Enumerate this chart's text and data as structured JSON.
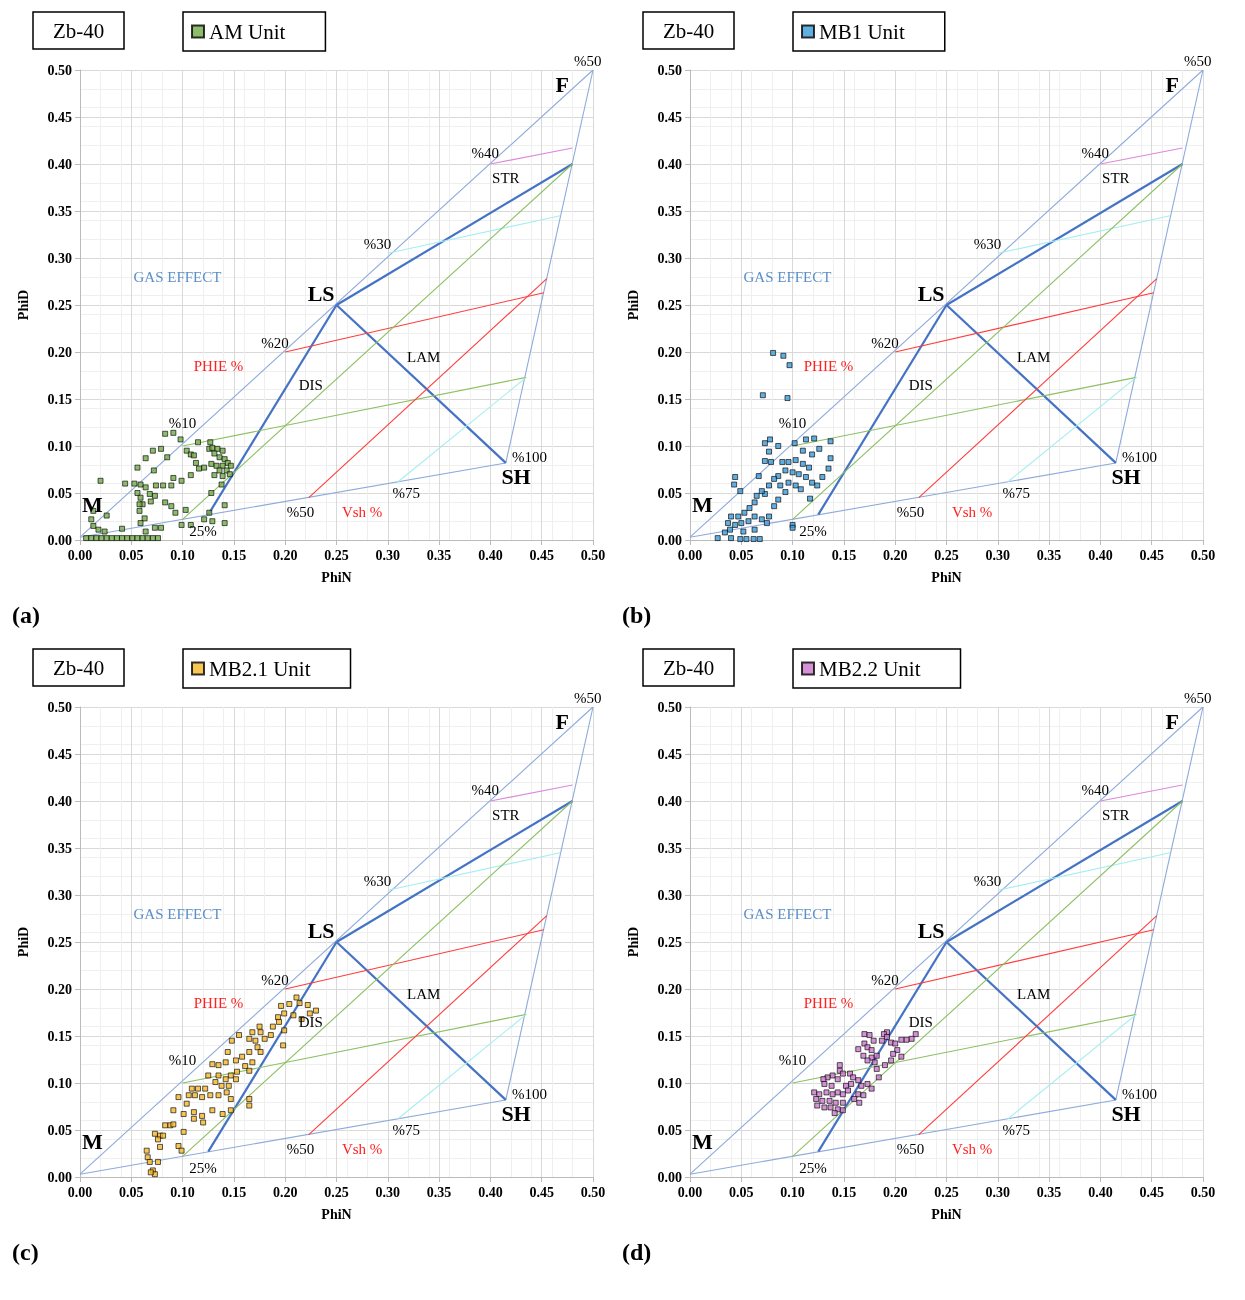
{
  "chart_data": [
    {
      "type": "scatter",
      "title": "Zb-40",
      "xlabel": "PhiN",
      "ylabel": "PhiD",
      "legend": "top left",
      "grid": true,
      "line_style": "solid",
      "xlim": [
        0,
        0.5
      ],
      "ylim": [
        0,
        0.5
      ],
      "xticks": [
        {
          "value": 0,
          "label": "0.00"
        },
        0.05,
        {
          "value": 0.1,
          "label": "0.10"
        },
        0.15,
        {
          "value": 0.2,
          "label": "0.20"
        },
        0.25,
        {
          "value": 0.3,
          "label": "0.30"
        },
        0.35,
        {
          "value": 0.4,
          "label": "0.40"
        },
        0.45,
        {
          "value": 0.5,
          "label": "0.50"
        }
      ],
      "yticks": [
        {
          "value": 0,
          "label": "0.00"
        },
        0.05,
        {
          "value": 0.1,
          "label": "0.10"
        },
        0.15,
        {
          "value": 0.2,
          "label": "0.20"
        },
        0.25,
        {
          "value": 0.3,
          "label": "0.30"
        },
        0.35,
        {
          "value": 0.4,
          "label": "0.40"
        },
        0.45,
        {
          "value": 0.5,
          "label": "0.50"
        }
      ],
      "series": [
        {
          "type": "line",
          "marker": "none",
          "color": "#8eaadb",
          "x": [
            0,
            0.5
          ],
          "values": [
            0.003,
            0.5
          ]
        },
        {
          "type": "line",
          "marker": "none",
          "color": "#8eaadb",
          "x": [
            0.5,
            0.415
          ],
          "values": [
            0.5,
            0.082
          ]
        },
        {
          "type": "line",
          "marker": "none",
          "color": "#8eaadb",
          "x": [
            0.415,
            0
          ],
          "values": [
            0.082,
            0.003
          ]
        },
        {
          "type": "line",
          "marker": "none",
          "color": "#4472c4",
          "x": [
            0.25,
            0.415
          ],
          "values": [
            0.25,
            0.082
          ]
        },
        {
          "type": "line",
          "marker": "none",
          "color": "#4472c4",
          "x": [
            0.25,
            0.48
          ],
          "values": [
            0.25,
            0.4
          ]
        },
        {
          "type": "line",
          "marker": "none",
          "color": "#4472c4",
          "x": [
            0.25,
            0.125
          ],
          "values": [
            0.25,
            0.027
          ]
        },
        {
          "type": "line",
          "marker": "none",
          "color": "#dd88dd",
          "x": [
            0.4,
            0.48
          ],
          "values": [
            0.4,
            0.417
          ]
        },
        {
          "type": "line",
          "marker": "none",
          "color": "#a6eef0",
          "x": [
            0.3,
            0.468
          ],
          "values": [
            0.305,
            0.345
          ]
        },
        {
          "type": "line",
          "marker": "none",
          "color": "#ff3b3b",
          "x": [
            0.2,
            0.452
          ],
          "values": [
            0.2,
            0.263
          ]
        },
        {
          "type": "line",
          "marker": "none",
          "color": "#8cc063",
          "x": [
            0.1,
            0.435
          ],
          "values": [
            0.1,
            0.173
          ]
        },
        {
          "type": "line",
          "marker": "none",
          "color": "#8cc063",
          "x": [
            0.1,
            0.48
          ],
          "values": [
            0.022,
            0.4
          ]
        },
        {
          "type": "line",
          "marker": "none",
          "color": "#ff3b3b",
          "x": [
            0.223,
            0.455
          ],
          "values": [
            0.045,
            0.278
          ]
        },
        {
          "type": "line",
          "marker": "none",
          "color": "#a6eef0",
          "x": [
            0.31,
            0.435
          ],
          "values": [
            0.062,
            0.173
          ]
        },
        {
          "name": "AM Unit",
          "marker": "square",
          "color": "#70ad47",
          "x": [
            0.083,
            0.091,
            0.098,
            0.127,
            0.115,
            0.064,
            0.071,
            0.079,
            0.085,
            0.104,
            0.108,
            0.111,
            0.113,
            0.056,
            0.072,
            0.044,
            0.053,
            0.059,
            0.064,
            0.02,
            0.074,
            0.081,
            0.091,
            0.089,
            0.099,
            0.108,
            0.128,
            0.138,
            0.141,
            0.141,
            0.126,
            0.103,
            0.089,
            0.093,
            0.083,
            0.073,
            0.069,
            0.061,
            0.058,
            0.063,
            0.059,
            0.064,
            0.073,
            0.079,
            0.041,
            0.026,
            0.013,
            0.013,
            0.018,
            0.024,
            0.011,
            0.099,
            0.108,
            0.121,
            0.129,
            0.056,
            0.059,
            0.068,
            0.058,
            0.126,
            0.129,
            0.134,
            0.139,
            0.131,
            0.136,
            0.141,
            0.144,
            0.147,
            0.139,
            0.133,
            0.128,
            0.121,
            0.116,
            0.136,
            0.143,
            0.131,
            0.146,
            0.139,
            0.006,
            0.011,
            0.016,
            0.021,
            0.026,
            0.031,
            0.036,
            0.041,
            0.046,
            0.051,
            0.056,
            0.061,
            0.066,
            0.071,
            0.076
          ],
          "values": [
            0.113,
            0.114,
            0.107,
            0.104,
            0.104,
            0.087,
            0.095,
            0.097,
            0.088,
            0.095,
            0.091,
            0.09,
            0.082,
            0.077,
            0.074,
            0.06,
            0.06,
            0.059,
            0.056,
            0.063,
            0.058,
            0.058,
            0.066,
            0.058,
            0.063,
            0.069,
            0.05,
            0.059,
            0.037,
            0.018,
            0.029,
            0.032,
            0.036,
            0.029,
            0.04,
            0.047,
            0.041,
            0.038,
            0.031,
            0.023,
            0.018,
            0.009,
            0.013,
            0.013,
            0.012,
            0.026,
            0.031,
            0.015,
            0.011,
            0.009,
            0.022,
            0.016,
            0.016,
            0.022,
            0.02,
            0.05,
            0.045,
            0.049,
            0.038,
            0.097,
            0.098,
            0.097,
            0.095,
            0.092,
            0.088,
            0.086,
            0.082,
            0.079,
            0.079,
            0.079,
            0.081,
            0.077,
            0.076,
            0.074,
            0.074,
            0.069,
            0.07,
            0.068,
            0.002,
            0.002,
            0.002,
            0.002,
            0.002,
            0.002,
            0.002,
            0.002,
            0.002,
            0.002,
            0.002,
            0.002,
            0.002,
            0.002,
            0.002
          ]
        }
      ],
      "annotations": [
        "%50",
        "F",
        "%40",
        "STR",
        "%30",
        "GAS EFFECT",
        "LS",
        "%20",
        "PHIE %",
        "DIS",
        "LAM",
        "%10",
        "%100",
        "SH",
        "M",
        "25%",
        "%50",
        "Vsh %",
        "%75",
        "(a)"
      ]
    },
    {
      "type": "scatter",
      "title": "Zb-40",
      "xlabel": "PhiN",
      "ylabel": "PhiD",
      "legend": "top left",
      "grid": true,
      "line_style": "solid",
      "xlim": [
        0,
        0.5
      ],
      "ylim": [
        0,
        0.5
      ],
      "xticks": [
        {
          "value": 0,
          "label": "0.00"
        },
        0.05,
        {
          "value": 0.1,
          "label": "0.10"
        },
        0.15,
        {
          "value": 0.2,
          "label": "0.20"
        },
        0.25,
        {
          "value": 0.3,
          "label": "0.30"
        },
        0.35,
        {
          "value": 0.4,
          "label": "0.40"
        },
        0.45,
        {
          "value": 0.5,
          "label": "0.50"
        }
      ],
      "yticks": [
        {
          "value": 0,
          "label": "0.00"
        },
        0.05,
        {
          "value": 0.1,
          "label": "0.10"
        },
        0.15,
        {
          "value": 0.2,
          "label": "0.20"
        },
        0.25,
        {
          "value": 0.3,
          "label": "0.30"
        },
        0.35,
        {
          "value": 0.4,
          "label": "0.40"
        },
        0.45,
        {
          "value": 0.5,
          "label": "0.50"
        }
      ],
      "series": [
        {
          "type": "line",
          "marker": "none",
          "color": "#8eaadb",
          "x": [
            0,
            0.5
          ],
          "values": [
            0.003,
            0.5
          ]
        },
        {
          "type": "line",
          "marker": "none",
          "color": "#8eaadb",
          "x": [
            0.5,
            0.415
          ],
          "values": [
            0.5,
            0.082
          ]
        },
        {
          "type": "line",
          "marker": "none",
          "color": "#8eaadb",
          "x": [
            0.415,
            0
          ],
          "values": [
            0.082,
            0.003
          ]
        },
        {
          "type": "line",
          "marker": "none",
          "color": "#4472c4",
          "x": [
            0.25,
            0.415
          ],
          "values": [
            0.25,
            0.082
          ]
        },
        {
          "type": "line",
          "marker": "none",
          "color": "#4472c4",
          "x": [
            0.25,
            0.48
          ],
          "values": [
            0.25,
            0.4
          ]
        },
        {
          "type": "line",
          "marker": "none",
          "color": "#4472c4",
          "x": [
            0.25,
            0.125
          ],
          "values": [
            0.25,
            0.027
          ]
        },
        {
          "type": "line",
          "marker": "none",
          "color": "#dd88dd",
          "x": [
            0.4,
            0.48
          ],
          "values": [
            0.4,
            0.417
          ]
        },
        {
          "type": "line",
          "marker": "none",
          "color": "#a6eef0",
          "x": [
            0.3,
            0.468
          ],
          "values": [
            0.305,
            0.345
          ]
        },
        {
          "type": "line",
          "marker": "none",
          "color": "#ff3b3b",
          "x": [
            0.2,
            0.452
          ],
          "values": [
            0.2,
            0.263
          ]
        },
        {
          "type": "line",
          "marker": "none",
          "color": "#8cc063",
          "x": [
            0.1,
            0.435
          ],
          "values": [
            0.1,
            0.173
          ]
        },
        {
          "type": "line",
          "marker": "none",
          "color": "#8cc063",
          "x": [
            0.1,
            0.48
          ],
          "values": [
            0.022,
            0.4
          ]
        },
        {
          "type": "line",
          "marker": "none",
          "color": "#ff3b3b",
          "x": [
            0.223,
            0.455
          ],
          "values": [
            0.045,
            0.278
          ]
        },
        {
          "type": "line",
          "marker": "none",
          "color": "#a6eef0",
          "x": [
            0.31,
            0.435
          ],
          "values": [
            0.062,
            0.173
          ]
        },
        {
          "name": "MB1 Unit",
          "marker": "square",
          "color": "#3a9ad9",
          "x": [
            0.081,
            0.091,
            0.097,
            0.071,
            0.095,
            0.073,
            0.078,
            0.086,
            0.102,
            0.113,
            0.121,
            0.137,
            0.077,
            0.073,
            0.079,
            0.11,
            0.119,
            0.126,
            0.137,
            0.135,
            0.067,
            0.044,
            0.043,
            0.049,
            0.09,
            0.096,
            0.103,
            0.11,
            0.116,
            0.093,
            0.1,
            0.106,
            0.113,
            0.119,
            0.124,
            0.129,
            0.117,
            0.086,
            0.082,
            0.077,
            0.088,
            0.096,
            0.103,
            0.108,
            0.093,
            0.086,
            0.082,
            0.073,
            0.07,
            0.065,
            0.063,
            0.058,
            0.053,
            0.047,
            0.04,
            0.037,
            0.044,
            0.05,
            0.057,
            0.063,
            0.07,
            0.077,
            0.075,
            0.034,
            0.027,
            0.04,
            0.049,
            0.055,
            0.062,
            0.068,
            0.1,
            0.1,
            0.039,
            0.052,
            0.063
          ],
          "values": [
            0.199,
            0.196,
            0.186,
            0.154,
            0.151,
            0.103,
            0.107,
            0.1,
            0.103,
            0.107,
            0.108,
            0.105,
            0.094,
            0.084,
            0.083,
            0.095,
            0.091,
            0.097,
            0.087,
            0.076,
            0.068,
            0.067,
            0.059,
            0.052,
            0.083,
            0.083,
            0.085,
            0.081,
            0.077,
            0.074,
            0.072,
            0.07,
            0.067,
            0.061,
            0.058,
            0.067,
            0.044,
            0.068,
            0.065,
            0.058,
            0.058,
            0.061,
            0.058,
            0.054,
            0.051,
            0.043,
            0.036,
            0.049,
            0.052,
            0.047,
            0.04,
            0.034,
            0.029,
            0.025,
            0.025,
            0.018,
            0.016,
            0.018,
            0.02,
            0.025,
            0.022,
            0.025,
            0.018,
            0.008,
            0.002,
            0.002,
            0.001,
            0.001,
            0.001,
            0.001,
            0.016,
            0.013,
            0.011,
            0.009,
            0.011
          ]
        }
      ],
      "annotations": [
        "%50",
        "F",
        "%40",
        "STR",
        "%30",
        "GAS EFFECT",
        "LS",
        "%20",
        "PHIE %",
        "DIS",
        "LAM",
        "%10",
        "%100",
        "SH",
        "M",
        "25%",
        "%50",
        "Vsh %",
        "%75",
        "(b)"
      ]
    },
    {
      "type": "scatter",
      "title": "Zb-40",
      "xlabel": "PhiN",
      "ylabel": "PhiD",
      "legend": "top left",
      "grid": true,
      "line_style": "solid",
      "xlim": [
        0,
        0.5
      ],
      "ylim": [
        0,
        0.5
      ],
      "xticks": [
        {
          "value": 0,
          "label": "0.00"
        },
        0.05,
        {
          "value": 0.1,
          "label": "0.10"
        },
        0.15,
        {
          "value": 0.2,
          "label": "0.20"
        },
        0.25,
        {
          "value": 0.3,
          "label": "0.30"
        },
        0.35,
        {
          "value": 0.4,
          "label": "0.40"
        },
        0.45,
        {
          "value": 0.5,
          "label": "0.50"
        }
      ],
      "yticks": [
        {
          "value": 0,
          "label": "0.00"
        },
        0.05,
        {
          "value": 0.1,
          "label": "0.10"
        },
        0.15,
        {
          "value": 0.2,
          "label": "0.20"
        },
        0.25,
        {
          "value": 0.3,
          "label": "0.30"
        },
        0.35,
        {
          "value": 0.4,
          "label": "0.40"
        },
        0.45,
        {
          "value": 0.5,
          "label": "0.50"
        }
      ],
      "series": [
        {
          "type": "line",
          "marker": "none",
          "color": "#8eaadb",
          "x": [
            0,
            0.5
          ],
          "values": [
            0.003,
            0.5
          ]
        },
        {
          "type": "line",
          "marker": "none",
          "color": "#8eaadb",
          "x": [
            0.5,
            0.415
          ],
          "values": [
            0.5,
            0.082
          ]
        },
        {
          "type": "line",
          "marker": "none",
          "color": "#8eaadb",
          "x": [
            0.415,
            0
          ],
          "values": [
            0.082,
            0.003
          ]
        },
        {
          "type": "line",
          "marker": "none",
          "color": "#4472c4",
          "x": [
            0.25,
            0.415
          ],
          "values": [
            0.25,
            0.082
          ]
        },
        {
          "type": "line",
          "marker": "none",
          "color": "#4472c4",
          "x": [
            0.25,
            0.48
          ],
          "values": [
            0.25,
            0.4
          ]
        },
        {
          "type": "line",
          "marker": "none",
          "color": "#4472c4",
          "x": [
            0.25,
            0.125
          ],
          "values": [
            0.25,
            0.027
          ]
        },
        {
          "type": "line",
          "marker": "none",
          "color": "#dd88dd",
          "x": [
            0.4,
            0.48
          ],
          "values": [
            0.4,
            0.417
          ]
        },
        {
          "type": "line",
          "marker": "none",
          "color": "#a6eef0",
          "x": [
            0.3,
            0.468
          ],
          "values": [
            0.305,
            0.345
          ]
        },
        {
          "type": "line",
          "marker": "none",
          "color": "#ff3b3b",
          "x": [
            0.2,
            0.452
          ],
          "values": [
            0.2,
            0.263
          ]
        },
        {
          "type": "line",
          "marker": "none",
          "color": "#8cc063",
          "x": [
            0.1,
            0.435
          ],
          "values": [
            0.1,
            0.173
          ]
        },
        {
          "type": "line",
          "marker": "none",
          "color": "#8cc063",
          "x": [
            0.1,
            0.48
          ],
          "values": [
            0.022,
            0.4
          ]
        },
        {
          "type": "line",
          "marker": "none",
          "color": "#ff3b3b",
          "x": [
            0.223,
            0.455
          ],
          "values": [
            0.045,
            0.278
          ]
        },
        {
          "type": "line",
          "marker": "none",
          "color": "#a6eef0",
          "x": [
            0.31,
            0.435
          ],
          "values": [
            0.062,
            0.173
          ]
        },
        {
          "name": "MB2.1 Unit",
          "marker": "square",
          "color": "#f5b829",
          "x": [
            0.211,
            0.196,
            0.204,
            0.214,
            0.222,
            0.23,
            0.224,
            0.216,
            0.208,
            0.199,
            0.193,
            0.194,
            0.188,
            0.199,
            0.186,
            0.175,
            0.168,
            0.176,
            0.18,
            0.171,
            0.165,
            0.155,
            0.148,
            0.173,
            0.176,
            0.198,
            0.165,
            0.158,
            0.144,
            0.152,
            0.142,
            0.135,
            0.129,
            0.161,
            0.168,
            0.165,
            0.153,
            0.147,
            0.142,
            0.135,
            0.125,
            0.132,
            0.138,
            0.145,
            0.152,
            0.122,
            0.115,
            0.109,
            0.106,
            0.112,
            0.119,
            0.127,
            0.135,
            0.143,
            0.147,
            0.096,
            0.104,
            0.091,
            0.101,
            0.111,
            0.119,
            0.129,
            0.139,
            0.147,
            0.165,
            0.165,
            0.111,
            0.12,
            0.088,
            0.083,
            0.091,
            0.101,
            0.078,
            0.081,
            0.073,
            0.076,
            0.096,
            0.078,
            0.099,
            0.065,
            0.066,
            0.068,
            0.076,
            0.071,
            0.073,
            0.069
          ],
          "values": [
            0.191,
            0.182,
            0.184,
            0.185,
            0.183,
            0.177,
            0.174,
            0.168,
            0.172,
            0.174,
            0.17,
            0.165,
            0.16,
            0.156,
            0.151,
            0.16,
            0.154,
            0.154,
            0.147,
            0.145,
            0.147,
            0.151,
            0.145,
            0.138,
            0.133,
            0.14,
            0.133,
            0.128,
            0.133,
            0.124,
            0.122,
            0.119,
            0.12,
            0.118,
            0.122,
            0.113,
            0.112,
            0.108,
            0.104,
            0.108,
            0.108,
            0.101,
            0.097,
            0.097,
            0.104,
            0.094,
            0.094,
            0.094,
            0.087,
            0.087,
            0.085,
            0.087,
            0.087,
            0.09,
            0.083,
            0.085,
            0.078,
            0.071,
            0.067,
            0.069,
            0.065,
            0.071,
            0.067,
            0.071,
            0.083,
            0.076,
            0.062,
            0.058,
            0.055,
            0.055,
            0.056,
            0.048,
            0.044,
            0.044,
            0.046,
            0.04,
            0.033,
            0.032,
            0.028,
            0.028,
            0.021,
            0.016,
            0.016,
            0.007,
            0.003,
            0.005
          ]
        }
      ],
      "annotations": [
        "%50",
        "F",
        "%40",
        "STR",
        "%30",
        "GAS EFFECT",
        "LS",
        "%20",
        "PHIE %",
        "DIS",
        "LAM",
        "%10",
        "%100",
        "SH",
        "M",
        "25%",
        "%50",
        "Vsh %",
        "%75",
        "(c)"
      ]
    },
    {
      "type": "scatter",
      "title": "Zb-40",
      "xlabel": "PhiN",
      "ylabel": "PhiD",
      "legend": "top left",
      "grid": true,
      "line_style": "solid",
      "xlim": [
        0,
        0.5
      ],
      "ylim": [
        0,
        0.5
      ],
      "xticks": [
        {
          "value": 0,
          "label": "0.00"
        },
        0.05,
        {
          "value": 0.1,
          "label": "0.10"
        },
        0.15,
        {
          "value": 0.2,
          "label": "0.20"
        },
        0.25,
        {
          "value": 0.3,
          "label": "0.30"
        },
        0.35,
        {
          "value": 0.4,
          "label": "0.40"
        },
        0.45,
        {
          "value": 0.5,
          "label": "0.50"
        }
      ],
      "yticks": [
        {
          "value": 0,
          "label": "0.00"
        },
        0.05,
        {
          "value": 0.1,
          "label": "0.10"
        },
        0.15,
        {
          "value": 0.2,
          "label": "0.20"
        },
        0.25,
        {
          "value": 0.3,
          "label": "0.30"
        },
        0.35,
        {
          "value": 0.4,
          "label": "0.40"
        },
        0.45,
        {
          "value": 0.5,
          "label": "0.50"
        }
      ],
      "series": [
        {
          "type": "line",
          "marker": "none",
          "color": "#8eaadb",
          "x": [
            0,
            0.5
          ],
          "values": [
            0.003,
            0.5
          ]
        },
        {
          "type": "line",
          "marker": "none",
          "color": "#8eaadb",
          "x": [
            0.5,
            0.415
          ],
          "values": [
            0.5,
            0.082
          ]
        },
        {
          "type": "line",
          "marker": "none",
          "color": "#8eaadb",
          "x": [
            0.415,
            0
          ],
          "values": [
            0.082,
            0.003
          ]
        },
        {
          "type": "line",
          "marker": "none",
          "color": "#4472c4",
          "x": [
            0.25,
            0.415
          ],
          "values": [
            0.25,
            0.082
          ]
        },
        {
          "type": "line",
          "marker": "none",
          "color": "#4472c4",
          "x": [
            0.25,
            0.48
          ],
          "values": [
            0.25,
            0.4
          ]
        },
        {
          "type": "line",
          "marker": "none",
          "color": "#4472c4",
          "x": [
            0.25,
            0.125
          ],
          "values": [
            0.25,
            0.027
          ]
        },
        {
          "type": "line",
          "marker": "none",
          "color": "#dd88dd",
          "x": [
            0.4,
            0.48
          ],
          "values": [
            0.4,
            0.417
          ]
        },
        {
          "type": "line",
          "marker": "none",
          "color": "#a6eef0",
          "x": [
            0.3,
            0.468
          ],
          "values": [
            0.305,
            0.345
          ]
        },
        {
          "type": "line",
          "marker": "none",
          "color": "#ff3b3b",
          "x": [
            0.2,
            0.452
          ],
          "values": [
            0.2,
            0.263
          ]
        },
        {
          "type": "line",
          "marker": "none",
          "color": "#8cc063",
          "x": [
            0.1,
            0.435
          ],
          "values": [
            0.1,
            0.173
          ]
        },
        {
          "type": "line",
          "marker": "none",
          "color": "#8cc063",
          "x": [
            0.1,
            0.48
          ],
          "values": [
            0.022,
            0.4
          ]
        },
        {
          "type": "line",
          "marker": "none",
          "color": "#ff3b3b",
          "x": [
            0.223,
            0.455
          ],
          "values": [
            0.045,
            0.278
          ]
        },
        {
          "type": "line",
          "marker": "none",
          "color": "#a6eef0",
          "x": [
            0.31,
            0.435
          ],
          "values": [
            0.062,
            0.173
          ]
        },
        {
          "name": "MB2.2 Unit",
          "marker": "square",
          "color": "#cc77cc",
          "x": [
            0.22,
            0.216,
            0.211,
            0.206,
            0.192,
            0.189,
            0.192,
            0.187,
            0.196,
            0.2,
            0.202,
            0.198,
            0.206,
            0.196,
            0.19,
            0.182,
            0.184,
            0.177,
            0.182,
            0.17,
            0.175,
            0.179,
            0.17,
            0.173,
            0.164,
            0.177,
            0.169,
            0.173,
            0.18,
            0.146,
            0.146,
            0.139,
            0.134,
            0.13,
            0.131,
            0.138,
            0.144,
            0.149,
            0.156,
            0.159,
            0.164,
            0.157,
            0.152,
            0.167,
            0.173,
            0.177,
            0.121,
            0.126,
            0.133,
            0.139,
            0.144,
            0.149,
            0.154,
            0.123,
            0.129,
            0.136,
            0.142,
            0.149,
            0.124,
            0.131,
            0.137,
            0.144,
            0.141,
            0.164,
            0.16,
            0.165,
            0.169,
            0.149
          ],
          "values": [
            0.152,
            0.147,
            0.146,
            0.146,
            0.154,
            0.152,
            0.149,
            0.145,
            0.143,
            0.142,
            0.135,
            0.131,
            0.128,
            0.124,
            0.119,
            0.115,
            0.106,
            0.127,
            0.129,
            0.152,
            0.151,
            0.145,
            0.142,
            0.138,
            0.136,
            0.135,
            0.129,
            0.124,
            0.122,
            0.119,
            0.113,
            0.108,
            0.106,
            0.104,
            0.099,
            0.097,
            0.104,
            0.11,
            0.11,
            0.106,
            0.103,
            0.099,
            0.097,
            0.097,
            0.099,
            0.094,
            0.09,
            0.088,
            0.09,
            0.088,
            0.09,
            0.088,
            0.092,
            0.083,
            0.081,
            0.081,
            0.079,
            0.079,
            0.076,
            0.074,
            0.074,
            0.072,
            0.068,
            0.088,
            0.083,
            0.079,
            0.087,
            0.071
          ]
        }
      ],
      "annotations": [
        "%50",
        "F",
        "%40",
        "STR",
        "%30",
        "GAS EFFECT",
        "LS",
        "%20",
        "PHIE %",
        "DIS",
        "LAM",
        "%10",
        "%100",
        "SH",
        "M",
        "25%",
        "%50",
        "Vsh %",
        "%75",
        "(d)"
      ]
    }
  ]
}
